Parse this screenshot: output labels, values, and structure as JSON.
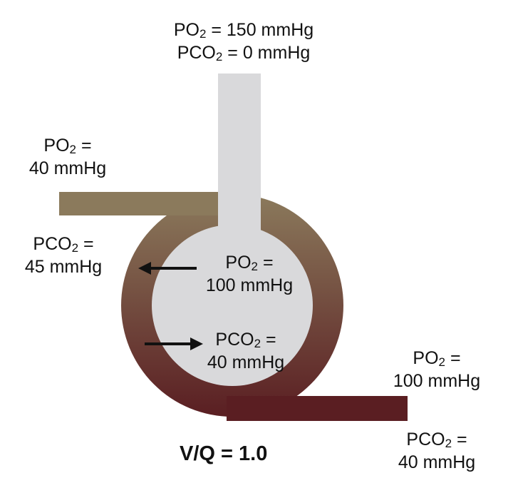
{
  "colors": {
    "capillary_top": "#8b7a5c",
    "capillary_bottom": "#5a1e22",
    "airway": "#d9d9db",
    "alveolus": "#d9d9db",
    "text": "#111111"
  },
  "airway_in": {
    "po2": {
      "prefix": "PO",
      "sub": "2",
      "rest": " = 150 mmHg"
    },
    "pco2": {
      "prefix": "PCO",
      "sub": "2",
      "rest": " = 0 mmHg"
    }
  },
  "venous_in": {
    "po2_line1": {
      "prefix": "PO",
      "sub": "2",
      "rest": " ="
    },
    "po2_line2": "40 mmHg",
    "pco2_line1": {
      "prefix": "PCO",
      "sub": "2",
      "rest": " ="
    },
    "pco2_line2": "45 mmHg"
  },
  "alveolus": {
    "po2_line1": {
      "prefix": "PO",
      "sub": "2",
      "rest": " ="
    },
    "po2_line2": "100 mmHg",
    "pco2_line1": {
      "prefix": "PCO",
      "sub": "2",
      "rest": " ="
    },
    "pco2_line2": "40 mmHg"
  },
  "arterial_out": {
    "po2_line1": {
      "prefix": "PO",
      "sub": "2",
      "rest": " ="
    },
    "po2_line2": "100 mmHg",
    "pco2_line1": {
      "prefix": "PCO",
      "sub": "2",
      "rest": " ="
    },
    "pco2_line2": "40 mmHg"
  },
  "ratio_label": "V/Q = 1.0"
}
